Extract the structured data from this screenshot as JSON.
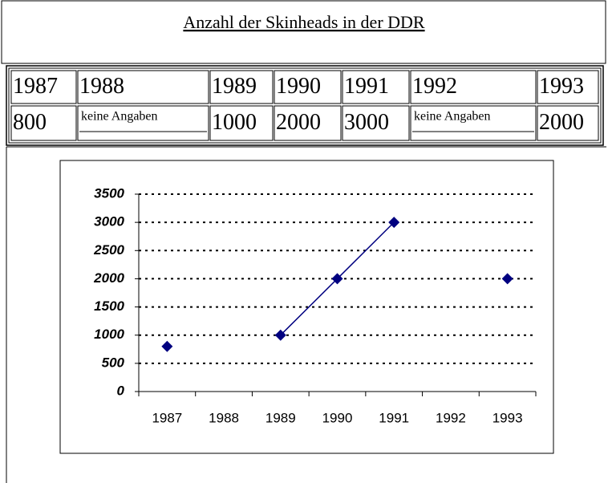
{
  "title": "Anzahl der Skinheads in der DDR",
  "table": {
    "rows": [
      [
        "1987",
        "1988",
        "1989",
        "1990",
        "1991",
        "1992",
        "1993"
      ],
      [
        "800",
        "keine Angaben",
        "1000",
        "2000",
        "3000",
        "keine Angaben",
        "2000"
      ]
    ]
  },
  "chart_data": {
    "type": "line",
    "categories": [
      "1987",
      "1988",
      "1989",
      "1990",
      "1991",
      "1992",
      "1993"
    ],
    "series": [
      {
        "color": "#000080",
        "values": [
          800,
          null,
          1000,
          2000,
          3000,
          null,
          2000
        ]
      }
    ],
    "ylim": [
      0,
      3500
    ],
    "yticks": [
      0,
      500,
      1000,
      1500,
      2000,
      2500,
      3000,
      3500
    ],
    "grid": true
  }
}
